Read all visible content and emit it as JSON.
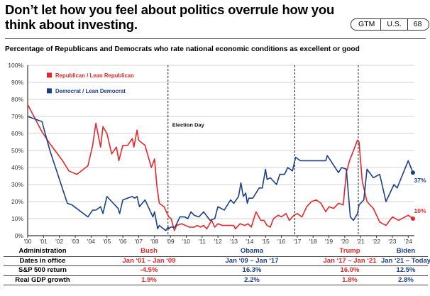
{
  "header": {
    "title": "Don’t let how you feel about politics overrule how you think about investing.",
    "badge": [
      "GTM",
      "U.S.",
      "68"
    ]
  },
  "colors": {
    "republican": "#e8262a",
    "democrat": "#1c3f8c",
    "grid": "#d9d9d9",
    "axis": "#333333"
  },
  "chart_data": {
    "type": "line",
    "title": "Percentage of Republicans and Democrats who rate national economic conditions as excellent or good",
    "xlabel": "",
    "ylabel": "",
    "ylim": [
      0,
      100
    ],
    "xlim": [
      2000,
      2024.5
    ],
    "grid": true,
    "legend": "top-left",
    "yticks": [
      "0%",
      "10%",
      "20%",
      "30%",
      "40%",
      "50%",
      "60%",
      "70%",
      "80%",
      "90%",
      "100%"
    ],
    "xticks": [
      "'00",
      "'01",
      "'02",
      "'03",
      "'04",
      "'05",
      "'06",
      "'07",
      "'08",
      "'09",
      "'10",
      "'11",
      "'12",
      "'13",
      "'14",
      "'15",
      "'16",
      "'17",
      "'18",
      "'19",
      "'20",
      "'21",
      "'22",
      "'23",
      "'24"
    ],
    "vlines": [
      {
        "x": 2008.85,
        "label": "Election Day"
      },
      {
        "x": 2016.85,
        "label": ""
      },
      {
        "x": 2020.85,
        "label": ""
      }
    ],
    "series": [
      {
        "name": "Republican / Lean Republican",
        "color": "#e8262a",
        "end_label": "10%",
        "points": [
          [
            2000.0,
            77
          ],
          [
            2000.9,
            61
          ],
          [
            2001.4,
            54
          ],
          [
            2002.2,
            44
          ],
          [
            2002.6,
            38
          ],
          [
            2003.1,
            36
          ],
          [
            2003.8,
            41
          ],
          [
            2004.1,
            53
          ],
          [
            2004.3,
            66
          ],
          [
            2004.6,
            52
          ],
          [
            2004.75,
            64
          ],
          [
            2005.0,
            60
          ],
          [
            2005.3,
            48
          ],
          [
            2005.6,
            52
          ],
          [
            2005.75,
            44
          ],
          [
            2006.0,
            53
          ],
          [
            2006.3,
            53
          ],
          [
            2006.6,
            57
          ],
          [
            2006.7,
            52
          ],
          [
            2006.9,
            62
          ],
          [
            2007.0,
            56
          ],
          [
            2007.4,
            53
          ],
          [
            2007.8,
            40
          ],
          [
            2008.0,
            45
          ],
          [
            2008.15,
            29
          ],
          [
            2008.3,
            19
          ],
          [
            2008.6,
            17
          ],
          [
            2008.8,
            13
          ],
          [
            2008.9,
            11
          ],
          [
            2009.05,
            10
          ],
          [
            2009.25,
            3
          ],
          [
            2009.4,
            6
          ],
          [
            2009.7,
            7
          ],
          [
            2010.2,
            5
          ],
          [
            2010.5,
            5
          ],
          [
            2010.7,
            6
          ],
          [
            2010.9,
            5
          ],
          [
            2011.1,
            6
          ],
          [
            2011.3,
            4
          ],
          [
            2011.6,
            9
          ],
          [
            2011.8,
            5
          ],
          [
            2012.0,
            7
          ],
          [
            2012.3,
            6
          ],
          [
            2012.7,
            6
          ],
          [
            2013.0,
            6
          ],
          [
            2013.1,
            4
          ],
          [
            2013.4,
            7
          ],
          [
            2013.7,
            6
          ],
          [
            2013.9,
            7
          ],
          [
            2014.1,
            5
          ],
          [
            2014.4,
            14
          ],
          [
            2014.7,
            9
          ],
          [
            2014.9,
            9
          ],
          [
            2015.1,
            6
          ],
          [
            2015.3,
            5
          ],
          [
            2015.5,
            10
          ],
          [
            2015.8,
            12
          ],
          [
            2016.0,
            11
          ],
          [
            2016.3,
            13
          ],
          [
            2016.5,
            9
          ],
          [
            2016.8,
            12
          ],
          [
            2017.0,
            13
          ],
          [
            2017.3,
            11
          ],
          [
            2017.6,
            17
          ],
          [
            2017.9,
            20
          ],
          [
            2018.2,
            21
          ],
          [
            2018.5,
            19
          ],
          [
            2018.8,
            14
          ],
          [
            2019.0,
            17
          ],
          [
            2019.3,
            16
          ],
          [
            2019.6,
            19
          ],
          [
            2019.9,
            18
          ],
          [
            2020.1,
            37
          ],
          [
            2020.3,
            44
          ],
          [
            2020.8,
            56
          ],
          [
            2020.9,
            55
          ],
          [
            2021.1,
            32
          ],
          [
            2021.4,
            20
          ],
          [
            2021.8,
            16
          ],
          [
            2022.2,
            8
          ],
          [
            2022.6,
            6
          ],
          [
            2023.0,
            11
          ],
          [
            2023.4,
            9
          ],
          [
            2024.0,
            12
          ],
          [
            2024.3,
            10
          ]
        ]
      },
      {
        "name": "Democrat / Lean Democrat",
        "color": "#1c3f8c",
        "end_label": "37%",
        "points": [
          [
            2000.0,
            70
          ],
          [
            2000.9,
            67
          ],
          [
            2001.4,
            50
          ],
          [
            2002.5,
            19
          ],
          [
            2002.8,
            18
          ],
          [
            2003.8,
            11
          ],
          [
            2004.1,
            15
          ],
          [
            2004.3,
            15
          ],
          [
            2004.6,
            17
          ],
          [
            2004.75,
            13
          ],
          [
            2005.0,
            23
          ],
          [
            2005.3,
            20
          ],
          [
            2005.7,
            16
          ],
          [
            2005.8,
            13
          ],
          [
            2006.0,
            21
          ],
          [
            2006.6,
            23
          ],
          [
            2006.75,
            22
          ],
          [
            2006.9,
            23
          ],
          [
            2007.05,
            17
          ],
          [
            2007.4,
            21
          ],
          [
            2007.9,
            11
          ],
          [
            2008.0,
            14
          ],
          [
            2008.2,
            4
          ],
          [
            2008.3,
            6
          ],
          [
            2008.7,
            3
          ],
          [
            2008.85,
            5
          ],
          [
            2008.9,
            4
          ],
          [
            2009.0,
            5
          ],
          [
            2009.3,
            5
          ],
          [
            2009.6,
            11
          ],
          [
            2009.9,
            11
          ],
          [
            2010.1,
            10
          ],
          [
            2010.3,
            14
          ],
          [
            2010.5,
            12
          ],
          [
            2010.8,
            11
          ],
          [
            2011.1,
            14
          ],
          [
            2011.5,
            9
          ],
          [
            2011.8,
            10
          ],
          [
            2012.0,
            17
          ],
          [
            2012.4,
            15
          ],
          [
            2012.8,
            21
          ],
          [
            2013.0,
            19
          ],
          [
            2013.3,
            23
          ],
          [
            2013.45,
            31
          ],
          [
            2013.6,
            23
          ],
          [
            2013.75,
            25
          ],
          [
            2013.85,
            19
          ],
          [
            2013.95,
            22
          ],
          [
            2014.2,
            22
          ],
          [
            2014.6,
            28
          ],
          [
            2014.8,
            28
          ],
          [
            2015.0,
            39
          ],
          [
            2015.1,
            33
          ],
          [
            2015.3,
            34
          ],
          [
            2015.7,
            30
          ],
          [
            2015.9,
            36
          ],
          [
            2016.2,
            36
          ],
          [
            2016.4,
            40
          ],
          [
            2016.7,
            38
          ],
          [
            2016.9,
            46
          ],
          [
            2017.2,
            44
          ],
          [
            2018.8,
            44
          ],
          [
            2018.9,
            47
          ],
          [
            2019.6,
            37
          ],
          [
            2019.8,
            40
          ],
          [
            2020.1,
            39
          ],
          [
            2020.35,
            11
          ],
          [
            2020.55,
            9
          ],
          [
            2020.8,
            13
          ],
          [
            2020.9,
            18
          ],
          [
            2021.2,
            21
          ],
          [
            2021.4,
            39
          ],
          [
            2021.8,
            34
          ],
          [
            2022.2,
            36
          ],
          [
            2022.6,
            20
          ],
          [
            2023.1,
            30
          ],
          [
            2023.3,
            28
          ],
          [
            2024.0,
            44
          ],
          [
            2024.3,
            37
          ]
        ]
      }
    ],
    "legend_entries": [
      "Republican / Lean Republican",
      "Democrat / Lean Democrat"
    ]
  },
  "table": {
    "row_labels": [
      "Administration",
      "Dates in office",
      "S&P 500 return",
      "Real GDP growth"
    ],
    "columns": [
      {
        "admin": "Bush",
        "dates": "Jan ‘01 – Jan ‘09",
        "sp500": "-4.5%",
        "gdp": "1.9%",
        "party": "republican"
      },
      {
        "admin": "Obama",
        "dates": "Jan ‘09 – Jan ‘17",
        "sp500": "16.3%",
        "gdp": "2.2%",
        "party": "democrat"
      },
      {
        "admin": "Trump",
        "dates": "Jan ‘17 – Jan ‘21",
        "sp500": "16.0%",
        "gdp": "1.8%",
        "party": "republican"
      },
      {
        "admin": "Biden",
        "dates": "Jan ‘21 – Today",
        "sp500": "12.5%",
        "gdp": "2.8%",
        "party": "democrat"
      }
    ]
  }
}
